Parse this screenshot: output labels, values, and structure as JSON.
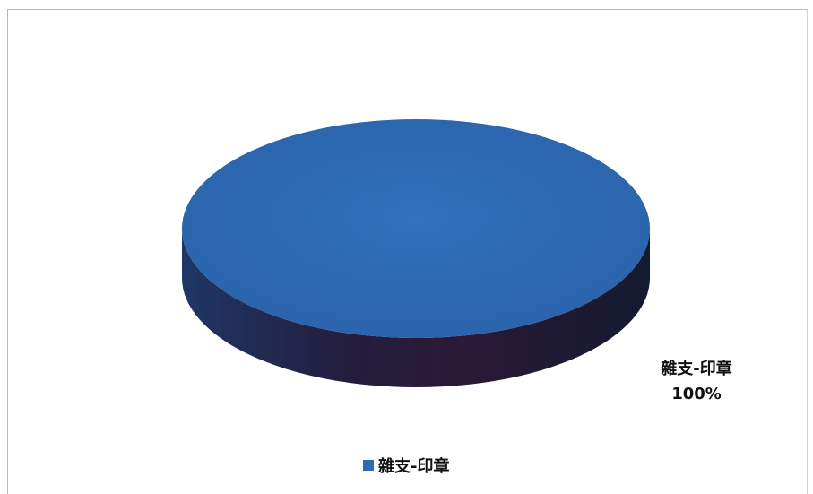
{
  "chart_data": {
    "type": "pie",
    "slices": [
      {
        "label": "雜支-印章",
        "value": 100,
        "percent_label": "100%"
      }
    ],
    "legend": {
      "position": "bottom"
    },
    "style": "3d",
    "colors": {
      "top": "#2f6bb5",
      "side": "#1d2a52",
      "side_dark": "#141a30"
    }
  }
}
